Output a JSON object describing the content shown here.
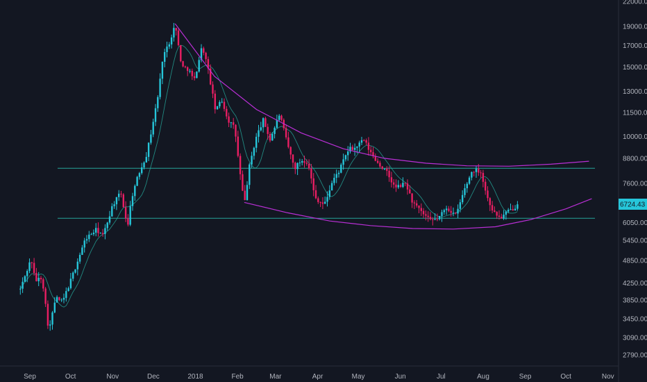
{
  "chart_data": {
    "type": "candlestick",
    "background": "#131722",
    "up_color": "#26c6da",
    "down_color": "#e91e63",
    "ma_color": "#26a69a",
    "trendline_color": "#ba2fd6",
    "level_color": "#26a69a",
    "last_price": "6724.43",
    "last_price_value": 6724.43,
    "y_ticks": [
      "22000.00",
      "19000.00",
      "17000.00",
      "15000.00",
      "13000.00",
      "11500.00",
      "10000.00",
      "8800.00",
      "7600.00",
      "6050.00",
      "5450.00",
      "4850.00",
      "4250.00",
      "3850.00",
      "3450.00",
      "3090.00",
      "2790.00"
    ],
    "x_ticks": [
      "Sep",
      "Oct",
      "Nov",
      "Dec",
      "2018",
      "Feb",
      "Mar",
      "Apr",
      "May",
      "Jun",
      "Jul",
      "Aug",
      "Sep",
      "Oct",
      "Nov"
    ],
    "log_scale": true,
    "grid": false,
    "support_level": 6200,
    "resistance_level": 8300,
    "price_path": [
      [
        "2017-08-25",
        4100
      ],
      [
        "2017-09-02",
        4900
      ],
      [
        "2017-09-05",
        4300
      ],
      [
        "2017-09-10",
        4400
      ],
      [
        "2017-09-15",
        3200
      ],
      [
        "2017-09-20",
        3900
      ],
      [
        "2017-09-25",
        3800
      ],
      [
        "2017-10-01",
        4300
      ],
      [
        "2017-10-12",
        5500
      ],
      [
        "2017-10-20",
        5800
      ],
      [
        "2017-10-25",
        5600
      ],
      [
        "2017-11-01",
        6700
      ],
      [
        "2017-11-07",
        7200
      ],
      [
        "2017-11-12",
        5900
      ],
      [
        "2017-11-15",
        7000
      ],
      [
        "2017-11-20",
        8000
      ],
      [
        "2017-11-26",
        9000
      ],
      [
        "2017-11-30",
        10500
      ],
      [
        "2017-12-05",
        13000
      ],
      [
        "2017-12-08",
        16000
      ],
      [
        "2017-12-12",
        17000
      ],
      [
        "2017-12-17",
        19200
      ],
      [
        "2017-12-22",
        15000
      ],
      [
        "2017-12-27",
        14800
      ],
      [
        "2017-12-31",
        13800
      ],
      [
        "2018-01-06",
        17000
      ],
      [
        "2018-01-10",
        15000
      ],
      [
        "2018-01-16",
        11500
      ],
      [
        "2018-01-20",
        12500
      ],
      [
        "2018-01-25",
        11000
      ],
      [
        "2018-01-30",
        10500
      ],
      [
        "2018-02-02",
        8500
      ],
      [
        "2018-02-06",
        6700
      ],
      [
        "2018-02-10",
        8500
      ],
      [
        "2018-02-15",
        10000
      ],
      [
        "2018-02-20",
        11000
      ],
      [
        "2018-02-25",
        9800
      ],
      [
        "2018-03-04",
        11400
      ],
      [
        "2018-03-10",
        9500
      ],
      [
        "2018-03-15",
        8300
      ],
      [
        "2018-03-20",
        8700
      ],
      [
        "2018-03-25",
        8600
      ],
      [
        "2018-03-30",
        7000
      ],
      [
        "2018-04-06",
        6700
      ],
      [
        "2018-04-12",
        7700
      ],
      [
        "2018-04-17",
        8200
      ],
      [
        "2018-04-24",
        9300
      ],
      [
        "2018-04-28",
        9300
      ],
      [
        "2018-05-05",
        9800
      ],
      [
        "2018-05-10",
        9100
      ],
      [
        "2018-05-15",
        8600
      ],
      [
        "2018-05-22",
        8100
      ],
      [
        "2018-05-28",
        7400
      ],
      [
        "2018-06-05",
        7600
      ],
      [
        "2018-06-10",
        6800
      ],
      [
        "2018-06-15",
        6500
      ],
      [
        "2018-06-23",
        6100
      ],
      [
        "2018-06-29",
        6200
      ],
      [
        "2018-07-05",
        6600
      ],
      [
        "2018-07-12",
        6300
      ],
      [
        "2018-07-18",
        7300
      ],
      [
        "2018-07-24",
        8200
      ],
      [
        "2018-07-30",
        8200
      ],
      [
        "2018-08-04",
        7000
      ],
      [
        "2018-08-09",
        6400
      ],
      [
        "2018-08-14",
        6200
      ],
      [
        "2018-08-18",
        6400
      ],
      [
        "2018-08-24",
        6600
      ],
      [
        "2018-08-27",
        6724.43
      ]
    ],
    "upper_trendline": [
      [
        "2017-12-17",
        19300
      ],
      [
        "2018-01-15",
        14200
      ],
      [
        "2018-02-15",
        11700
      ],
      [
        "2018-03-20",
        10200
      ],
      [
        "2018-04-20",
        9300
      ],
      [
        "2018-05-20",
        8800
      ],
      [
        "2018-06-20",
        8550
      ],
      [
        "2018-07-20",
        8420
      ],
      [
        "2018-08-20",
        8400
      ],
      [
        "2018-09-20",
        8500
      ],
      [
        "2018-10-18",
        8650
      ]
    ],
    "lower_trendline": [
      [
        "2018-02-06",
        6800
      ],
      [
        "2018-03-10",
        6400
      ],
      [
        "2018-04-10",
        6100
      ],
      [
        "2018-05-10",
        5940
      ],
      [
        "2018-06-10",
        5840
      ],
      [
        "2018-07-10",
        5820
      ],
      [
        "2018-08-10",
        5900
      ],
      [
        "2018-09-05",
        6150
      ],
      [
        "2018-10-01",
        6550
      ],
      [
        "2018-10-20",
        6950
      ]
    ]
  }
}
